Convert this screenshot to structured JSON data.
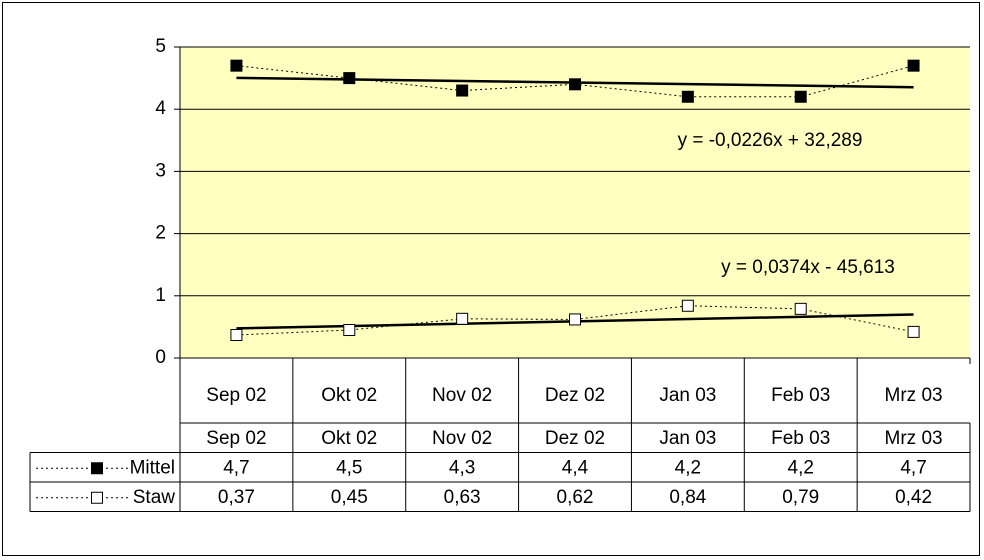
{
  "chart_data": {
    "type": "line",
    "categories": [
      "Sep 02",
      "Okt 02",
      "Nov 02",
      "Dez 02",
      "Jan 03",
      "Feb 03",
      "Mrz 03"
    ],
    "series": [
      {
        "name": "Mittel",
        "color": "#000000",
        "marker": "square-filled",
        "trendline": "linear",
        "values": [
          4.7,
          4.5,
          4.3,
          4.4,
          4.2,
          4.2,
          4.7
        ],
        "value_labels": [
          "4,7",
          "4,5",
          "4,3",
          "4,4",
          "4,2",
          "4,2",
          "4,7"
        ]
      },
      {
        "name": "Staw",
        "color": "#000000",
        "marker": "square-open",
        "trendline": "linear",
        "values": [
          0.37,
          0.45,
          0.63,
          0.62,
          0.84,
          0.79,
          0.42
        ],
        "value_labels": [
          "0,37",
          "0,45",
          "0,63",
          "0,62",
          "0,84",
          "0,79",
          "0,42"
        ]
      }
    ],
    "annotations": [
      "y = -0,0226x + 32,289",
      "y = 0,0374x - 45,613"
    ],
    "ylim": [
      0,
      5
    ],
    "yticks": [
      0,
      1,
      2,
      3,
      4,
      5
    ],
    "grid": true,
    "data_table": true,
    "background": "#ffffc0"
  }
}
